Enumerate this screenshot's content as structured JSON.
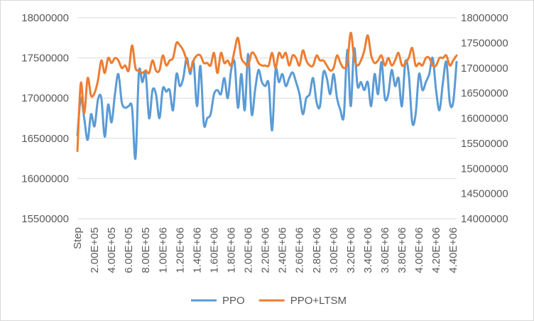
{
  "chart_data": {
    "type": "line",
    "title": "",
    "xlabel": "",
    "ylabel": "",
    "ylim": [
      15500000,
      18000000
    ],
    "y2lim": [
      14000000,
      18000000
    ],
    "y_ticks": [
      "15500000",
      "16000000",
      "16500000",
      "17000000",
      "17500000",
      "18000000"
    ],
    "y2_ticks": [
      "14000000",
      "14500000",
      "15000000",
      "15500000",
      "16000000",
      "16500000",
      "17000000",
      "17500000",
      "18000000"
    ],
    "x_tick_labels": [
      "Step",
      "2.00E+05",
      "4.00E+05",
      "6.00E+05",
      "8.00E+05",
      "1.00E+06",
      "1.20E+06",
      "1.40E+06",
      "1.60E+06",
      "1.80E+06",
      "2.00E+06",
      "2.20E+06",
      "2.40E+06",
      "2.60E+06",
      "2.80E+06",
      "3.00E+06",
      "3.20E+06",
      "3.40E+06",
      "3.60E+06",
      "3.80E+06",
      "4.00E+06",
      "4.20E+06",
      "4.40E+06"
    ],
    "grid": true,
    "legend_position": "bottom",
    "series": [
      {
        "name": "PPO",
        "axis": "left",
        "color": "#5B9BD5",
        "values": [
          16540000,
          17000000,
          16750000,
          16480000,
          16800000,
          16650000,
          16980000,
          17000000,
          16520000,
          16920000,
          16700000,
          17050000,
          17300000,
          16950000,
          16880000,
          16900000,
          16880000,
          16250000,
          17320000,
          17200000,
          17300000,
          16750000,
          17100000,
          17050000,
          16750000,
          17120000,
          17080000,
          17100000,
          16850000,
          17300000,
          17150000,
          17250000,
          17500000,
          17300000,
          17450000,
          16900000,
          17400000,
          16680000,
          16750000,
          16800000,
          17050000,
          17100000,
          17050000,
          17250000,
          17000000,
          17350000,
          17450000,
          16880000,
          17300000,
          16850000,
          17550000,
          16800000,
          17100000,
          17350000,
          17200000,
          17150000,
          17180000,
          16600000,
          17350000,
          17200000,
          17300000,
          17150000,
          17250000,
          17320000,
          17200000,
          17050000,
          16800000,
          17000000,
          17050000,
          17250000,
          16950000,
          16900000,
          17320000,
          17250000,
          17050000,
          17300000,
          17000000,
          16850000,
          16780000,
          17600000,
          16900000,
          17620000,
          17150000,
          17200000,
          17100000,
          17200000,
          16900000,
          17300000,
          17050000,
          17450000,
          17000000,
          17050000,
          17350000,
          17150000,
          17250000,
          16900000,
          17450000,
          17300000,
          16700000,
          16800000,
          17300000,
          17100000,
          17200000,
          17300000,
          17500000,
          17100000,
          16850000,
          17200000,
          17450000,
          16950000,
          16950000,
          17450000
        ]
      },
      {
        "name": "PPO+LTSM",
        "axis": "right",
        "color": "#ED7D31",
        "values": [
          15350000,
          16700000,
          16100000,
          16800000,
          16450000,
          16500000,
          16750000,
          17150000,
          16900000,
          17200000,
          17100000,
          17200000,
          17150000,
          17000000,
          17050000,
          16950000,
          17450000,
          17000000,
          16950000,
          16900000,
          16950000,
          16900000,
          17150000,
          16950000,
          16950000,
          17250000,
          17050000,
          17150000,
          17200000,
          17500000,
          17450000,
          17350000,
          17150000,
          16950000,
          17150000,
          17250000,
          17250000,
          17100000,
          17100000,
          17050000,
          17300000,
          16900000,
          17300000,
          17100000,
          17150000,
          17050000,
          17350000,
          17600000,
          17200000,
          17100000,
          17050000,
          17300000,
          17250000,
          17100000,
          17050000,
          17050000,
          17050000,
          17300000,
          17000000,
          17300000,
          17200000,
          17300000,
          17050000,
          17250000,
          17200000,
          17050000,
          17350000,
          17150000,
          17050000,
          17050000,
          17250000,
          17150000,
          17150000,
          17050000,
          16950000,
          17000000,
          17250000,
          17100000,
          17000000,
          17100000,
          17700000,
          17200000,
          17050000,
          17150000,
          17350000,
          17650000,
          17250000,
          17100000,
          17150000,
          17250000,
          17050000,
          17200000,
          17050000,
          17150000,
          17300000,
          17050000,
          17100000,
          17200000,
          17400000,
          17050000,
          17100000,
          17050000,
          17200000,
          17200000,
          17050000,
          17050000,
          17200000,
          17200000,
          17250000,
          17050000,
          17150000,
          17250000
        ]
      }
    ]
  }
}
